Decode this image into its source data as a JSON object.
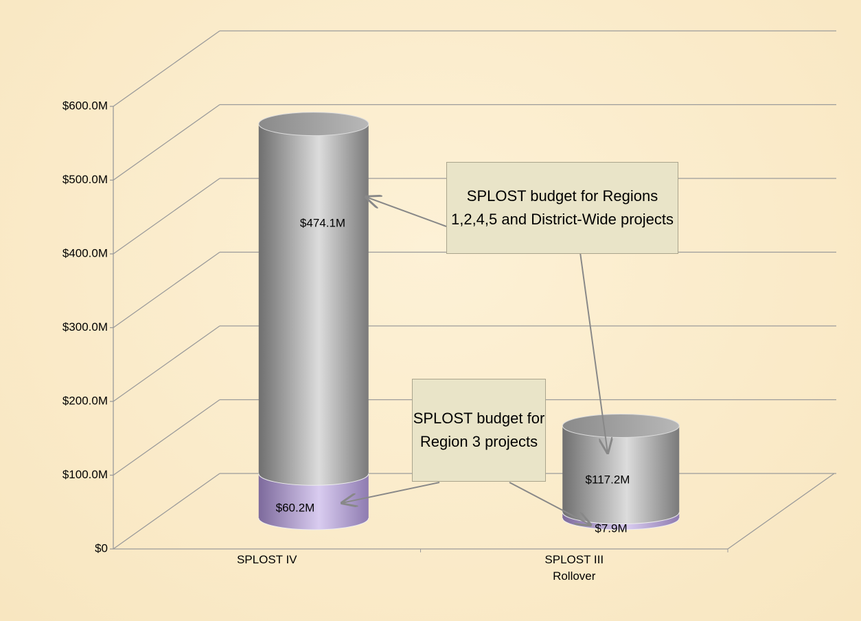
{
  "chart_data": {
    "type": "bar3d_cylinder_stacked",
    "categories": [
      "SPLOST IV",
      "SPLOST III Rollover"
    ],
    "series": [
      {
        "color": "#a58fcc",
        "values": [
          60.2,
          7.9
        ],
        "value_labels": [
          "$60.2M",
          "$7.9M"
        ]
      },
      {
        "color": "#a8a8a8",
        "values": [
          474.1,
          117.2
        ],
        "value_labels": [
          "$474.1M",
          "$117.2M"
        ]
      }
    ],
    "ylim": [
      0,
      600
    ],
    "yticks": [
      {
        "value": 0,
        "label": "$0"
      },
      {
        "value": 100,
        "label": "$100.0M"
      },
      {
        "value": 200,
        "label": "$200.0M"
      },
      {
        "value": 300,
        "label": "$300.0M"
      },
      {
        "value": 400,
        "label": "$400.0M"
      },
      {
        "value": 500,
        "label": "$500.0M"
      },
      {
        "value": 600,
        "label": "$600.0M"
      }
    ],
    "grid": true,
    "annotations": [
      "SPLOST budget for Regions 1,2,4,5 and District-Wide projects",
      "SPLOST budget for Region 3 projects"
    ]
  }
}
